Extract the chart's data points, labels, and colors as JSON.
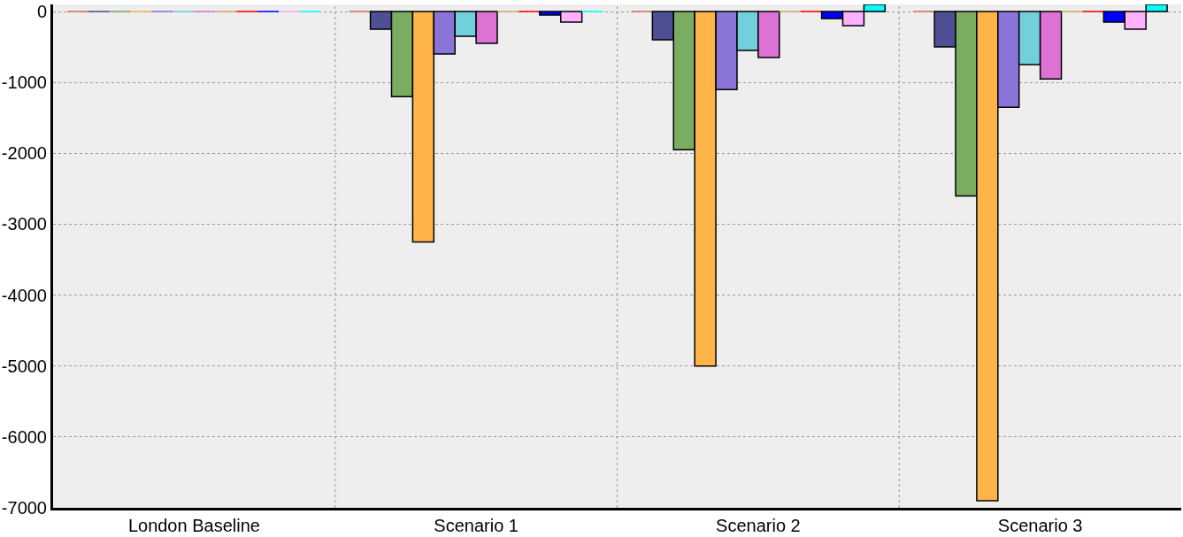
{
  "chart_data": {
    "type": "bar",
    "categories": [
      "London Baseline",
      "Scenario 1",
      "Scenario 2",
      "Scenario 3"
    ],
    "series": [
      {
        "color": "#d87060",
        "values": [
          0,
          0,
          0,
          0
        ]
      },
      {
        "color": "#4e5096",
        "values": [
          0,
          -250,
          -400,
          -500
        ]
      },
      {
        "color": "#7aac62",
        "values": [
          0,
          -1200,
          -1950,
          -2600
        ]
      },
      {
        "color": "#ffb44a",
        "values": [
          0,
          -3250,
          -5000,
          -6900
        ]
      },
      {
        "color": "#8a74d8",
        "values": [
          0,
          -600,
          -1100,
          -1350
        ]
      },
      {
        "color": "#72d0dc",
        "values": [
          0,
          -350,
          -550,
          -750
        ]
      },
      {
        "color": "#dc72d4",
        "values": [
          0,
          -450,
          -650,
          -950
        ]
      },
      {
        "color": "#d4aa6a",
        "values": [
          0,
          0,
          0,
          0
        ]
      },
      {
        "color": "#ff0000",
        "values": [
          0,
          0,
          0,
          0
        ]
      },
      {
        "color": "#0000ff",
        "values": [
          0,
          -50,
          -100,
          -150
        ]
      },
      {
        "color": "#ffb0ff",
        "values": [
          0,
          -150,
          -200,
          -250
        ]
      },
      {
        "color": "#00ffff",
        "values": [
          0,
          0,
          100,
          100
        ]
      }
    ],
    "ylim": [
      -7000,
      100
    ],
    "yticks": [
      0,
      -1000,
      -2000,
      -3000,
      -4000,
      -5000,
      -6000,
      -7000
    ],
    "grid": true
  }
}
